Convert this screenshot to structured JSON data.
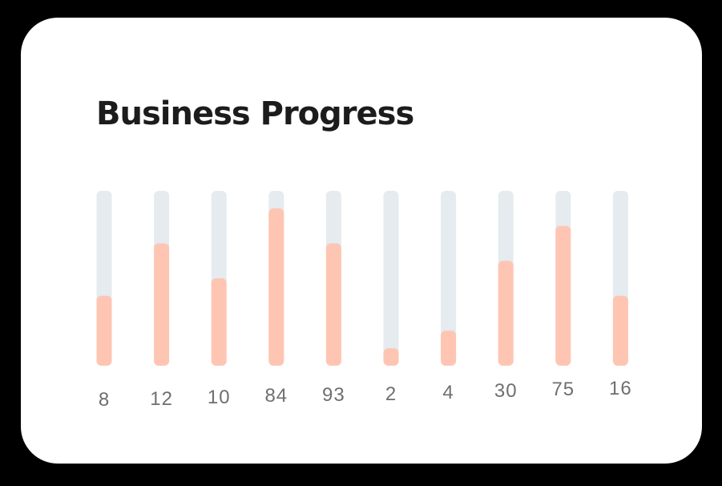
{
  "card": {
    "title": "Business Progress"
  },
  "colors": {
    "background": "#000000",
    "card": "#ffffff",
    "title": "#1c1c1c",
    "track": "#e5ebef",
    "fill": "#ffc5b3",
    "label": "#6f6f6f"
  },
  "chart_data": {
    "type": "bar",
    "title": "Business Progress",
    "xlabel": "",
    "ylabel": "",
    "grid": false,
    "legend": "none",
    "fill_unit": "fraction of track",
    "categories": [
      "8",
      "12",
      "10",
      "84",
      "93",
      "2",
      "4",
      "30",
      "75",
      "16"
    ],
    "values": [
      0.4,
      0.7,
      0.5,
      0.9,
      0.7,
      0.1,
      0.2,
      0.6,
      0.8,
      0.4
    ]
  }
}
